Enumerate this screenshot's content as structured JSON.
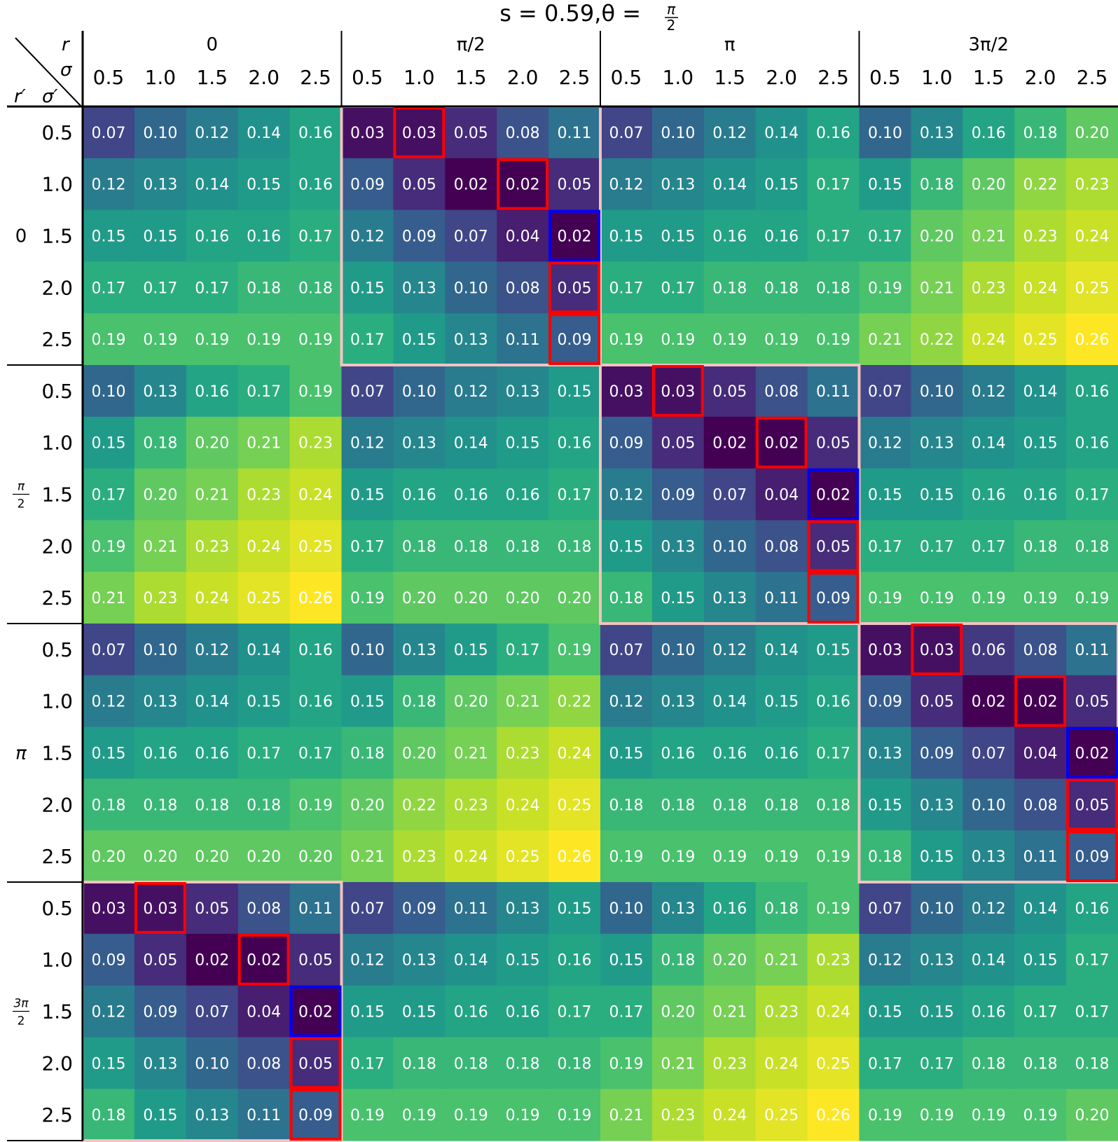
{
  "chart_data": {
    "type": "heatmap",
    "title": "s = 0.59,θ = π/2",
    "title_parts": {
      "lhs": "s = 0.59,θ = ",
      "frac_num": "π",
      "frac_den": "2"
    },
    "corner_labels": {
      "r": "r",
      "sigma": "σ",
      "r_prime": "r′",
      "sigma_prime": "σ′"
    },
    "col_groups": [
      "0",
      "π/2",
      "π",
      "3π/2"
    ],
    "col_sub": [
      "0.5",
      "1.0",
      "1.5",
      "2.0",
      "2.5"
    ],
    "row_groups": [
      {
        "label": "0"
      },
      {
        "label": "π/2",
        "num": "π",
        "den": "2"
      },
      {
        "label": "π"
      },
      {
        "label": "3π/2",
        "num": "3π",
        "den": "2"
      }
    ],
    "row_sub": [
      "0.5",
      "1.0",
      "1.5",
      "2.0",
      "2.5"
    ],
    "colormap": "viridis",
    "vmin": 0.02,
    "vmax": 0.26,
    "colors": {
      "highlight_red": "#ff0000",
      "highlight_blue": "#0000ff",
      "group_outline": "#f4c2c2",
      "text": "#ffffff"
    },
    "values": [
      [
        0.07,
        0.1,
        0.12,
        0.14,
        0.16,
        0.03,
        0.03,
        0.05,
        0.08,
        0.11,
        0.07,
        0.1,
        0.12,
        0.14,
        0.16,
        0.1,
        0.13,
        0.16,
        0.18,
        0.2
      ],
      [
        0.12,
        0.13,
        0.14,
        0.15,
        0.16,
        0.09,
        0.05,
        0.02,
        0.02,
        0.05,
        0.12,
        0.13,
        0.14,
        0.15,
        0.17,
        0.15,
        0.18,
        0.2,
        0.22,
        0.23
      ],
      [
        0.15,
        0.15,
        0.16,
        0.16,
        0.17,
        0.12,
        0.09,
        0.07,
        0.04,
        0.02,
        0.15,
        0.15,
        0.16,
        0.16,
        0.17,
        0.17,
        0.2,
        0.21,
        0.23,
        0.24
      ],
      [
        0.17,
        0.17,
        0.17,
        0.18,
        0.18,
        0.15,
        0.13,
        0.1,
        0.08,
        0.05,
        0.17,
        0.17,
        0.18,
        0.18,
        0.18,
        0.19,
        0.21,
        0.23,
        0.24,
        0.25
      ],
      [
        0.19,
        0.19,
        0.19,
        0.19,
        0.19,
        0.17,
        0.15,
        0.13,
        0.11,
        0.09,
        0.19,
        0.19,
        0.19,
        0.19,
        0.19,
        0.21,
        0.22,
        0.24,
        0.25,
        0.26
      ],
      [
        0.1,
        0.13,
        0.16,
        0.17,
        0.19,
        0.07,
        0.1,
        0.12,
        0.13,
        0.15,
        0.03,
        0.03,
        0.05,
        0.08,
        0.11,
        0.07,
        0.1,
        0.12,
        0.14,
        0.16
      ],
      [
        0.15,
        0.18,
        0.2,
        0.21,
        0.23,
        0.12,
        0.13,
        0.14,
        0.15,
        0.16,
        0.09,
        0.05,
        0.02,
        0.02,
        0.05,
        0.12,
        0.13,
        0.14,
        0.15,
        0.16
      ],
      [
        0.17,
        0.2,
        0.21,
        0.23,
        0.24,
        0.15,
        0.16,
        0.16,
        0.16,
        0.17,
        0.12,
        0.09,
        0.07,
        0.04,
        0.02,
        0.15,
        0.15,
        0.16,
        0.16,
        0.17
      ],
      [
        0.19,
        0.21,
        0.23,
        0.24,
        0.25,
        0.17,
        0.18,
        0.18,
        0.18,
        0.18,
        0.15,
        0.13,
        0.1,
        0.08,
        0.05,
        0.17,
        0.17,
        0.17,
        0.18,
        0.18
      ],
      [
        0.21,
        0.23,
        0.24,
        0.25,
        0.26,
        0.19,
        0.2,
        0.2,
        0.2,
        0.2,
        0.18,
        0.15,
        0.13,
        0.11,
        0.09,
        0.19,
        0.19,
        0.19,
        0.19,
        0.19
      ],
      [
        0.07,
        0.1,
        0.12,
        0.14,
        0.16,
        0.1,
        0.13,
        0.15,
        0.17,
        0.19,
        0.07,
        0.1,
        0.12,
        0.14,
        0.15,
        0.03,
        0.03,
        0.06,
        0.08,
        0.11
      ],
      [
        0.12,
        0.13,
        0.14,
        0.15,
        0.16,
        0.15,
        0.18,
        0.2,
        0.21,
        0.22,
        0.12,
        0.13,
        0.14,
        0.15,
        0.16,
        0.09,
        0.05,
        0.02,
        0.02,
        0.05
      ],
      [
        0.15,
        0.16,
        0.16,
        0.17,
        0.17,
        0.18,
        0.2,
        0.21,
        0.23,
        0.24,
        0.15,
        0.16,
        0.16,
        0.16,
        0.17,
        0.13,
        0.09,
        0.07,
        0.04,
        0.02
      ],
      [
        0.18,
        0.18,
        0.18,
        0.18,
        0.19,
        0.2,
        0.22,
        0.23,
        0.24,
        0.25,
        0.18,
        0.18,
        0.18,
        0.18,
        0.18,
        0.15,
        0.13,
        0.1,
        0.08,
        0.05
      ],
      [
        0.2,
        0.2,
        0.2,
        0.2,
        0.2,
        0.21,
        0.23,
        0.24,
        0.25,
        0.26,
        0.19,
        0.19,
        0.19,
        0.19,
        0.19,
        0.18,
        0.15,
        0.13,
        0.11,
        0.09
      ],
      [
        0.03,
        0.03,
        0.05,
        0.08,
        0.11,
        0.07,
        0.09,
        0.11,
        0.13,
        0.15,
        0.1,
        0.13,
        0.16,
        0.18,
        0.19,
        0.07,
        0.1,
        0.12,
        0.14,
        0.16
      ],
      [
        0.09,
        0.05,
        0.02,
        0.02,
        0.05,
        0.12,
        0.13,
        0.14,
        0.15,
        0.16,
        0.15,
        0.18,
        0.2,
        0.21,
        0.23,
        0.12,
        0.13,
        0.14,
        0.15,
        0.17
      ],
      [
        0.12,
        0.09,
        0.07,
        0.04,
        0.02,
        0.15,
        0.15,
        0.16,
        0.16,
        0.17,
        0.17,
        0.2,
        0.21,
        0.23,
        0.24,
        0.15,
        0.15,
        0.16,
        0.17,
        0.17
      ],
      [
        0.15,
        0.13,
        0.1,
        0.08,
        0.05,
        0.17,
        0.18,
        0.18,
        0.18,
        0.18,
        0.19,
        0.21,
        0.23,
        0.24,
        0.25,
        0.17,
        0.17,
        0.18,
        0.18,
        0.18
      ],
      [
        0.18,
        0.15,
        0.13,
        0.11,
        0.09,
        0.19,
        0.19,
        0.19,
        0.19,
        0.19,
        0.21,
        0.23,
        0.24,
        0.25,
        0.26,
        0.19,
        0.19,
        0.19,
        0.19,
        0.2
      ]
    ],
    "highlights": [
      {
        "row": 0,
        "col": 6,
        "color": "red"
      },
      {
        "row": 1,
        "col": 8,
        "color": "red"
      },
      {
        "row": 2,
        "col": 9,
        "color": "blue"
      },
      {
        "row": 3,
        "col": 9,
        "color": "red"
      },
      {
        "row": 4,
        "col": 9,
        "color": "red"
      },
      {
        "row": 5,
        "col": 11,
        "color": "red"
      },
      {
        "row": 6,
        "col": 13,
        "color": "red"
      },
      {
        "row": 7,
        "col": 14,
        "color": "blue"
      },
      {
        "row": 8,
        "col": 14,
        "color": "red"
      },
      {
        "row": 9,
        "col": 14,
        "color": "red"
      },
      {
        "row": 10,
        "col": 16,
        "color": "red"
      },
      {
        "row": 11,
        "col": 18,
        "color": "red"
      },
      {
        "row": 12,
        "col": 19,
        "color": "blue"
      },
      {
        "row": 13,
        "col": 19,
        "color": "red"
      },
      {
        "row": 14,
        "col": 19,
        "color": "red"
      },
      {
        "row": 15,
        "col": 1,
        "color": "red"
      },
      {
        "row": 16,
        "col": 3,
        "color": "red"
      },
      {
        "row": 17,
        "col": 4,
        "color": "blue"
      },
      {
        "row": 18,
        "col": 4,
        "color": "red"
      },
      {
        "row": 19,
        "col": 4,
        "color": "red"
      }
    ],
    "outlined_blocks": [
      {
        "row_group": 0,
        "col_group": 1
      },
      {
        "row_group": 1,
        "col_group": 2
      },
      {
        "row_group": 2,
        "col_group": 3
      },
      {
        "row_group": 3,
        "col_group": 0
      }
    ]
  }
}
